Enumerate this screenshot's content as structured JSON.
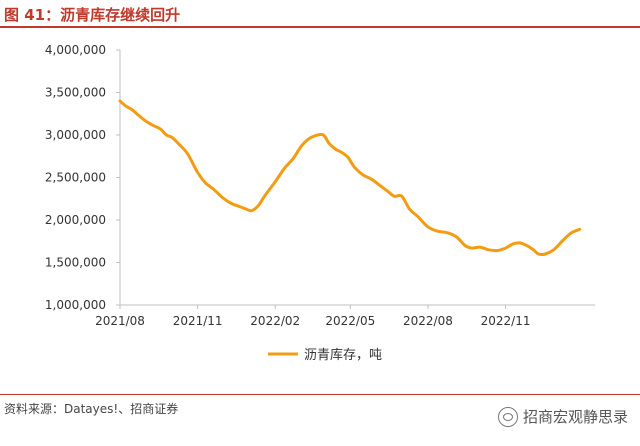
{
  "figure": {
    "title": "图 41：沥青库存继续回升",
    "source": "资料来源：Datayes!、招商证券",
    "watermark": "招商宏观静思录"
  },
  "colors": {
    "series": "#F39C12",
    "axis": "#BFBFBF",
    "accent": "#C0392B"
  },
  "chart_data": {
    "type": "line",
    "title": "",
    "xlabel": "",
    "ylabel": "",
    "ylim": [
      1000000,
      4000000
    ],
    "yticks": [
      1000000,
      1500000,
      2000000,
      2500000,
      3000000,
      3500000,
      4000000
    ],
    "ytick_labels": [
      "1,000,000",
      "1,500,000",
      "2,000,000",
      "2,500,000",
      "3,000,000",
      "3,500,000",
      "4,000,000"
    ],
    "xlim": [
      "2021-08-01",
      "2023-02-15"
    ],
    "xticks": [
      "2021-08-01",
      "2021-11-01",
      "2022-02-01",
      "2022-05-01",
      "2022-08-01",
      "2022-11-01"
    ],
    "xtick_labels": [
      "2021/08",
      "2021/11",
      "2022/02",
      "2022/05",
      "2022/08",
      "2022/11"
    ],
    "grid": false,
    "legend": "bottom-center",
    "series": [
      {
        "name": "沥青库存，吨",
        "x": [
          "2021-08-01",
          "2021-08-08",
          "2021-08-15",
          "2021-08-22",
          "2021-09-01",
          "2021-09-10",
          "2021-09-18",
          "2021-09-25",
          "2021-10-02",
          "2021-10-10",
          "2021-10-20",
          "2021-11-01",
          "2021-11-10",
          "2021-11-20",
          "2021-12-01",
          "2021-12-10",
          "2021-12-20",
          "2021-12-28",
          "2022-01-04",
          "2022-01-12",
          "2022-01-20",
          "2022-02-01",
          "2022-02-12",
          "2022-02-22",
          "2022-03-04",
          "2022-03-12",
          "2022-03-20",
          "2022-03-30",
          "2022-04-06",
          "2022-04-14",
          "2022-04-20",
          "2022-04-28",
          "2022-05-06",
          "2022-05-16",
          "2022-05-26",
          "2022-06-06",
          "2022-06-14",
          "2022-06-22",
          "2022-07-01",
          "2022-07-10",
          "2022-07-20",
          "2022-08-01",
          "2022-08-12",
          "2022-08-24",
          "2022-09-04",
          "2022-09-14",
          "2022-09-22",
          "2022-10-02",
          "2022-10-12",
          "2022-10-22",
          "2022-11-01",
          "2022-11-10",
          "2022-11-18",
          "2022-11-26",
          "2022-12-04",
          "2022-12-10",
          "2022-12-18",
          "2022-12-28",
          "2023-01-08",
          "2023-01-18",
          "2023-01-28"
        ],
        "values": [
          3400000,
          3340000,
          3300000,
          3240000,
          3160000,
          3110000,
          3070000,
          3000000,
          2970000,
          2890000,
          2780000,
          2560000,
          2440000,
          2360000,
          2260000,
          2200000,
          2160000,
          2130000,
          2110000,
          2170000,
          2290000,
          2450000,
          2610000,
          2720000,
          2870000,
          2950000,
          2990000,
          3000000,
          2900000,
          2830000,
          2800000,
          2740000,
          2620000,
          2530000,
          2480000,
          2400000,
          2340000,
          2280000,
          2280000,
          2130000,
          2040000,
          1920000,
          1870000,
          1850000,
          1800000,
          1700000,
          1670000,
          1680000,
          1650000,
          1640000,
          1670000,
          1720000,
          1730000,
          1700000,
          1650000,
          1600000,
          1600000,
          1650000,
          1760000,
          1850000,
          1890000
        ]
      }
    ]
  }
}
